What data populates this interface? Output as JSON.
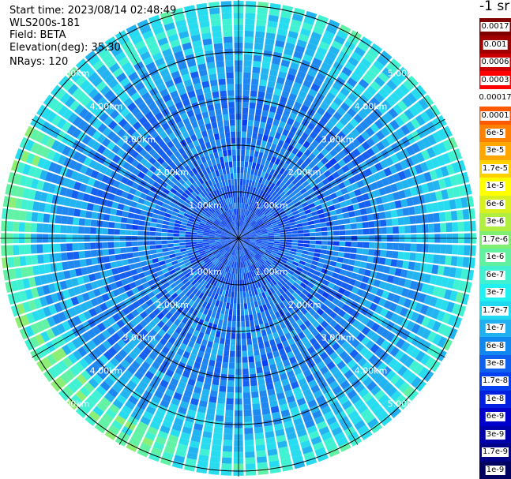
{
  "header": {
    "start_time": "Start time: 2023/08/14 02:48:49",
    "instrument": "WLS200s-181",
    "field": "Field: BETA",
    "elevation": "Elevation(deg): 35.30",
    "nrays": "NRays: 120"
  },
  "colorbar": {
    "unit_label": "-1 sr",
    "levels": [
      "0.0017",
      "0.001",
      "0.0006",
      "0.0003",
      "0.00017",
      "0.0001",
      "6e-5",
      "3e-5",
      "1.7e-5",
      "1e-5",
      "6e-6",
      "3e-6",
      "1.7e-6",
      "1e-6",
      "6e-7",
      "3e-7",
      "1.7e-7",
      "1e-7",
      "6e-8",
      "3e-8",
      "1.7e-8",
      "1e-8",
      "6e-9",
      "3e-9",
      "1.7e-9",
      "1e-9"
    ],
    "colors": [
      "#800000",
      "#a00000",
      "#cc0000",
      "#ff0000",
      "#ffffff",
      "#ff5a00",
      "#ff8000",
      "#ffa600",
      "#ffd000",
      "#ffff00",
      "#d8f020",
      "#b0ee40",
      "#80ee70",
      "#60f0a0",
      "#40f0d0",
      "#20f0f0",
      "#20d8f0",
      "#20b0f0",
      "#1088f0",
      "#1060f0",
      "#0040f0",
      "#0020e0",
      "#0000cc",
      "#0000aa",
      "#000088",
      "#000060"
    ]
  },
  "chart_data": {
    "type": "heatmap",
    "projection": "polar PPI",
    "field": "BETA",
    "n_rays": 120,
    "range_rings_km": [
      1,
      2,
      3,
      4,
      5
    ],
    "range_ring_labels": [
      "1.00km",
      "2.00km",
      "3.00km",
      "4.00km",
      "5.00km"
    ],
    "max_range_km": 5.1,
    "azimuth_gridlines_deg": [
      0,
      30,
      60,
      90,
      120,
      150,
      180,
      210,
      240,
      270,
      300,
      330
    ],
    "values_description": "backscatter mostly 3e-8 to 3e-7 sr-1; near field ~1e-8 to 3e-8; outer ring ~3e-7 to 1e-6 with local maxima ~1.7e-6 near west and south-west edges",
    "dominant_levels": [
      "1e-8",
      "3e-8",
      "1e-7",
      "3e-7",
      "1e-6",
      "1.7e-6"
    ]
  }
}
